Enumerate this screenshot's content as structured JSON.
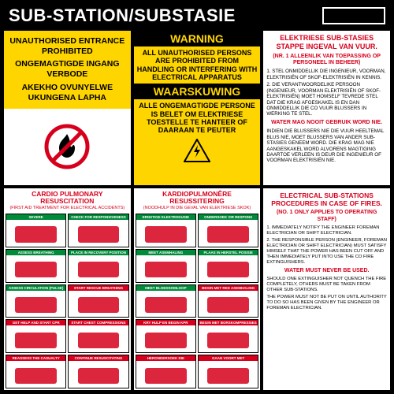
{
  "colors": {
    "yellow": "#ffd500",
    "red": "#d6001c",
    "green": "#008a3a",
    "black": "#000000",
    "white": "#ffffff"
  },
  "header": {
    "title": "SUB-STATION/SUBSTASIE"
  },
  "topLeft": {
    "en": "UNAUTHORISED ENTRANCE PROHIBITED",
    "af": "ONGEMAGTIGDE INGANG VERBODE",
    "zu": "AKEKHO OVUNYELWE UKUNGENA LAPHA"
  },
  "topMiddle": {
    "title1": "WARNING",
    "body1": "ALL UNAUTHORISED PERSONS ARE PROHIBITED FROM HANDLING OR INTERFERING WITH ELECTRICAL APPARATUS",
    "title2": "WAARSKUWING",
    "body2": "ALLE ONGEMAGTIGDE PERSONE IS BELET OM ELEKTRIESE TOESTELLE TE HANTEER OF DAARAAN TE PEUTER"
  },
  "topRight": {
    "title": "ELEKTRIESE SUB-STASIES STAPPE INGEVAL VAN VUUR.",
    "sub1": "(NR. 1 ALLEENLIK VAN TOEPASSING OP PERSONEEL IN BEHEER)",
    "p1": "1. STEL ONMIDDELLIK DIE INGENIEUR, VOORMAN, ELEKTRISIËN OF SKOF-ELEKTRISIËN IN KENNIS.",
    "p2": "2. DIE VERANTWOORDELIKE PERSOON (INGENIEUR, VOORMAN ELEKTRISIËN OF SKOF-ELEKTRISIËN) MOET HOMSELF TEVREDE STEL DAT DIE KRAG AFGESKAKEL IS EN DAN ONMIDDELLIK DIE CO VUUR BLUSSERS IN WERKING TE STEL.",
    "warn": "WATER MAG NOOIT GEBRUIK WORD NIE.",
    "p3": "INDIEN DIE BLUSSERS NIE DIE VUUR HEELTEMAL BLUS NIE, MOET BLUSSERS VAN ANDER SUB-STASIES GENEEM WORD. DIE KRAG MAG NIE AANGESKAKEL WORD ALVORENS MAGTIGING DAARTOE VERLEEN IS DEUR DIE INGENIEUR OF VOORMAN ELEKTRISIËN NIE."
  },
  "cprEn": {
    "title": "CARDIO PULMONARY RESUSCITATION",
    "sub": "(FIRST AID TREATMENT FOR ELECTRICAL ACCIDENTS)",
    "steps": [
      {
        "c": "g",
        "t": "SEVERE ELECTROCUTION/DROWNING"
      },
      {
        "c": "g",
        "t": "CHECK FOR RESPONSIVENESS"
      },
      {
        "c": "g",
        "t": "ASSESS BREATHING"
      },
      {
        "c": "g",
        "t": "PLACE IN RECOVERY POSITION"
      },
      {
        "c": "g",
        "t": "ASSESS CIRCULATION (PULSE)"
      },
      {
        "c": "r",
        "t": "START RESCUE BREATHING"
      },
      {
        "c": "r",
        "t": "GET HELP AND START CPR"
      },
      {
        "c": "r",
        "t": "START CHEST COMPRESSIONS"
      },
      {
        "c": "r",
        "t": "REASSESS THE CASUALTY"
      },
      {
        "c": "r",
        "t": "CONTINUE RESUSCITATING"
      }
    ]
  },
  "cprAf": {
    "title": "KARDIOPULMONÊRE RESUSSITERING",
    "sub": "(NOODHULP IN DIE GEVAL VAN ELEKTRIESE SKOK)",
    "steps": [
      {
        "c": "g",
        "t": "ERNSTIGE ELEKTROKUSIE"
      },
      {
        "c": "g",
        "t": "ONDERSOEK VIR RESPONS"
      },
      {
        "c": "g",
        "t": "MEET ASEMHALING"
      },
      {
        "c": "g",
        "t": "PLAAS IN HERSTEL POSISIE"
      },
      {
        "c": "g",
        "t": "MEET BLOEDSOMLOOP"
      },
      {
        "c": "r",
        "t": "BEGIN MET RED ASEMHALING"
      },
      {
        "c": "r",
        "t": "KRY HULP EN BEGIN KPR"
      },
      {
        "c": "r",
        "t": "BEGIN MET BORSKOMPRESSIES"
      },
      {
        "c": "r",
        "t": "HERONDERSOEK DIE SLAGOFFER"
      },
      {
        "c": "r",
        "t": "GAAN VOORT MET RESUSSITERING"
      }
    ]
  },
  "bottomRight": {
    "title": "ELECTRICAL SUB-STATIONS PROCEDURES IN CASE OF FIRES.",
    "sub1": "(NO. 1 ONLY APPLIES TO OPERATING STAFF)",
    "p1": "1. IMMEDIATELY NOTIFY THE ENGINEER FOREMAN ELECTRICIAN OR SHIFT ELECTRICIAN.",
    "p2": "2. THE RESPONSIBLE PERSON (ENGINEER, FOREMAN ELECTRICIAN OR SHIFT ELECTRICIAN) MUST SATISFY HIMSELF THAT THE POWER HAS BEEN CUT OFF AND THEN IMMEDIATELY PUT INTO USE THE CO FIRE EXTINGUISHERS.",
    "warn": "WATER MUST NEVER BE USED.",
    "p3": "SHOULD ONE EXTINGUISHER NOT QUENCH THE FIRE COMPLETELY, OTHERS MUST BE TAKEN FROM OTHER SUB-STATIONS.",
    "p4": "THE POWER MUST NOT BE PUT ON UNTIL AUTHORITY TO DO SO HAS BEEN GIVEN BY THE ENGINEER OR FOREMAN ELECTRICIAN."
  }
}
